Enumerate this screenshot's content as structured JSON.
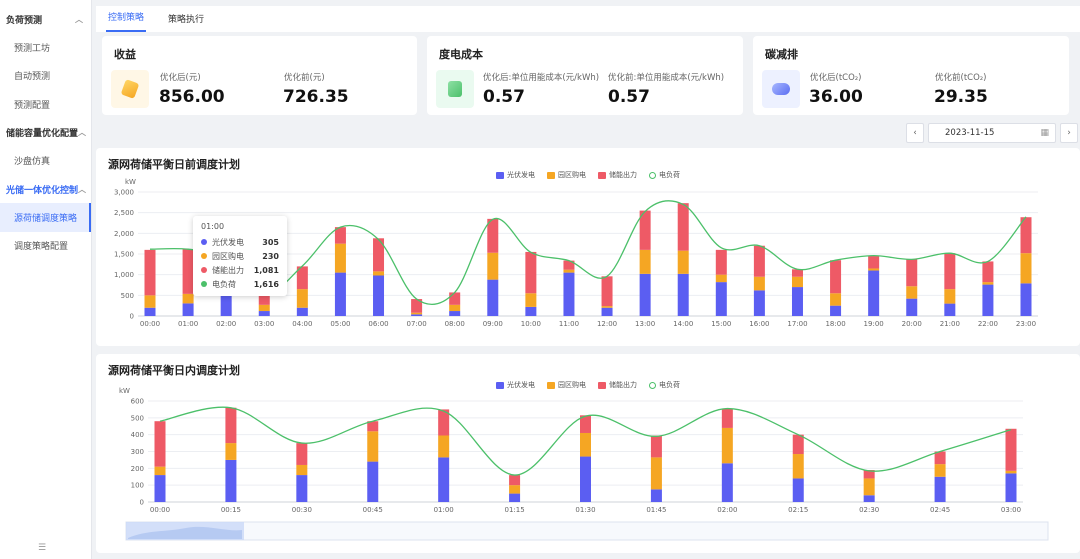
{
  "sidebar": {
    "groups": [
      {
        "label": "负荷预测",
        "items": [
          "预测工坊",
          "自动预测",
          "预测配置"
        ]
      },
      {
        "label": "储能容量优化配置",
        "items": [
          "沙盘仿真"
        ]
      },
      {
        "label": "光储一体优化控制",
        "items": [
          "源荷储调度策略",
          "调度策略配置"
        ]
      }
    ],
    "footer": "☰"
  },
  "tabs": [
    "控制策略",
    "策略执行"
  ],
  "kpis": [
    {
      "title": "收益",
      "after_label": "优化后(元)",
      "after_value": "856.00",
      "before_label": "优化前(元)",
      "before_value": "726.35"
    },
    {
      "title": "度电成本",
      "after_label": "优化后:单位用能成本(元/kWh)",
      "after_value": "0.57",
      "before_label": "优化前:单位用能成本(元/kWh)",
      "before_value": "0.57"
    },
    {
      "title": "碳减排",
      "after_label": "优化后(tCO₂)",
      "after_value": "36.00",
      "before_label": "优化前(tCO₂)",
      "before_value": "29.35"
    }
  ],
  "date": {
    "value": "2023-11-15",
    "prev": "‹",
    "next": "›"
  },
  "colors": {
    "pv": "#5b5ef2",
    "grid": "#f5a623",
    "storage": "#ee5a66",
    "load": "#4cc06a"
  },
  "tooltip": {
    "time": "01:00",
    "rows": [
      {
        "name": "光伏发电",
        "value": "305",
        "color": "#5b5ef2"
      },
      {
        "name": "园区购电",
        "value": "230",
        "color": "#f5a623"
      },
      {
        "name": "储能出力",
        "value": "1,081",
        "color": "#ee5a66"
      },
      {
        "name": "电负荷",
        "value": "1,616",
        "color": "#4cc06a"
      }
    ]
  },
  "chart_data": [
    {
      "type": "bar",
      "title": "源网荷储平衡日前调度计划",
      "ylabel": "kW",
      "ylim": [
        0,
        3000
      ],
      "yticks": [
        "0",
        "500",
        "1,000",
        "1,500",
        "2,000",
        "2,500",
        "3,000"
      ],
      "stacked": true,
      "legend_position": "top",
      "categories": [
        "00:00",
        "01:00",
        "02:00",
        "03:00",
        "04:00",
        "05:00",
        "06:00",
        "07:00",
        "08:00",
        "09:00",
        "10:00",
        "11:00",
        "12:00",
        "13:00",
        "14:00",
        "15:00",
        "16:00",
        "17:00",
        "18:00",
        "19:00",
        "20:00",
        "21:00",
        "22:00",
        "23:00"
      ],
      "series": [
        {
          "name": "光伏发电",
          "type": "bar",
          "values": [
            200,
            305,
            550,
            120,
            200,
            1050,
            980,
            40,
            120,
            880,
            220,
            1050,
            200,
            1020,
            1020,
            820,
            620,
            700,
            250,
            1100,
            420,
            300,
            760,
            790
          ]
        },
        {
          "name": "园区购电",
          "type": "bar",
          "values": [
            300,
            230,
            150,
            150,
            450,
            700,
            100,
            40,
            150,
            650,
            330,
            70,
            40,
            580,
            560,
            180,
            330,
            250,
            300,
            50,
            300,
            350,
            60,
            730
          ]
        },
        {
          "name": "储能出力",
          "type": "bar",
          "values": [
            1100,
            1081,
            900,
            250,
            550,
            400,
            800,
            330,
            300,
            820,
            1000,
            220,
            720,
            950,
            1150,
            600,
            750,
            180,
            800,
            300,
            650,
            870,
            500,
            870
          ]
        },
        {
          "name": "电负荷",
          "type": "line",
          "values": [
            1616,
            1616,
            1400,
            520,
            1210,
            2150,
            1850,
            410,
            570,
            2340,
            1540,
            1340,
            960,
            2530,
            2700,
            1650,
            1700,
            1130,
            1350,
            1460,
            1370,
            1520,
            1320,
            2400
          ]
        }
      ]
    },
    {
      "type": "bar",
      "title": "源网荷储平衡日内调度计划",
      "ylabel": "kW",
      "ylim": [
        0,
        600
      ],
      "yticks": [
        "0",
        "100",
        "200",
        "300",
        "400",
        "500",
        "600"
      ],
      "stacked": true,
      "legend_position": "top",
      "categories": [
        "00:00",
        "00:15",
        "00:30",
        "00:45",
        "01:00",
        "01:15",
        "01:30",
        "01:45",
        "02:00",
        "02:15",
        "02:30",
        "02:45",
        "03:00"
      ],
      "series": [
        {
          "name": "光伏发电",
          "type": "bar",
          "values": [
            160,
            250,
            160,
            240,
            265,
            50,
            270,
            75,
            230,
            140,
            40,
            150,
            170
          ]
        },
        {
          "name": "园区购电",
          "type": "bar",
          "values": [
            50,
            100,
            60,
            180,
            130,
            50,
            140,
            190,
            210,
            145,
            100,
            75,
            15
          ]
        },
        {
          "name": "储能出力",
          "type": "bar",
          "values": [
            270,
            210,
            130,
            60,
            155,
            60,
            105,
            130,
            115,
            115,
            50,
            75,
            250
          ]
        },
        {
          "name": "电负荷",
          "type": "line",
          "values": [
            480,
            560,
            350,
            480,
            540,
            160,
            510,
            390,
            555,
            400,
            185,
            300,
            430
          ]
        }
      ]
    }
  ]
}
